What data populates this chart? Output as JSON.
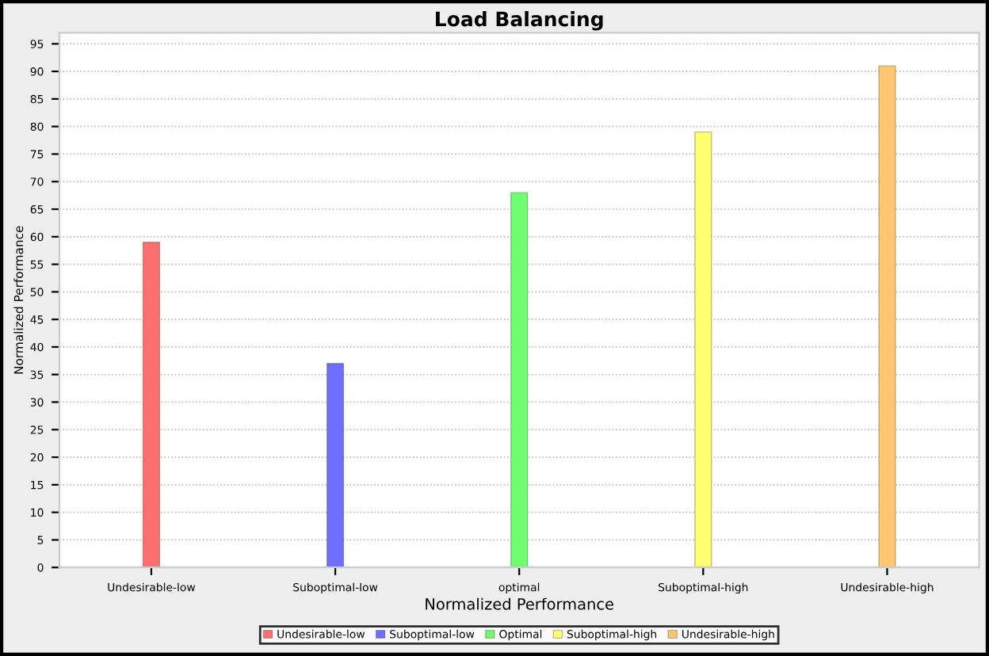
{
  "chart_data": {
    "type": "bar",
    "title": "Load Balancing",
    "xlabel": "Normalized Performance",
    "ylabel": "Normalized Performance",
    "categories": [
      "Undesirable-low",
      "Suboptimal-low",
      "optimal",
      "Suboptimal-high",
      "Undesirable-high"
    ],
    "series": [
      {
        "name": "Undesirable-low",
        "color": "#ff6f6f",
        "values": [
          59,
          null,
          null,
          null,
          null
        ]
      },
      {
        "name": "Suboptimal-low",
        "color": "#6f6fff",
        "values": [
          null,
          37,
          null,
          null,
          null
        ]
      },
      {
        "name": "Optimal",
        "color": "#6fff6f",
        "values": [
          null,
          null,
          68,
          null,
          null
        ]
      },
      {
        "name": "Suboptimal-high",
        "color": "#ffff6f",
        "values": [
          null,
          null,
          null,
          79,
          null
        ]
      },
      {
        "name": "Undesirable-high",
        "color": "#ffc870",
        "values": [
          null,
          null,
          null,
          null,
          91
        ]
      }
    ],
    "ylim": [
      0,
      97
    ],
    "yticks": [
      0,
      5,
      10,
      15,
      20,
      25,
      30,
      35,
      40,
      45,
      50,
      55,
      60,
      65,
      70,
      75,
      80,
      85,
      90,
      95
    ],
    "grid": "y",
    "line_style": "dotted",
    "legend": "bottom"
  }
}
